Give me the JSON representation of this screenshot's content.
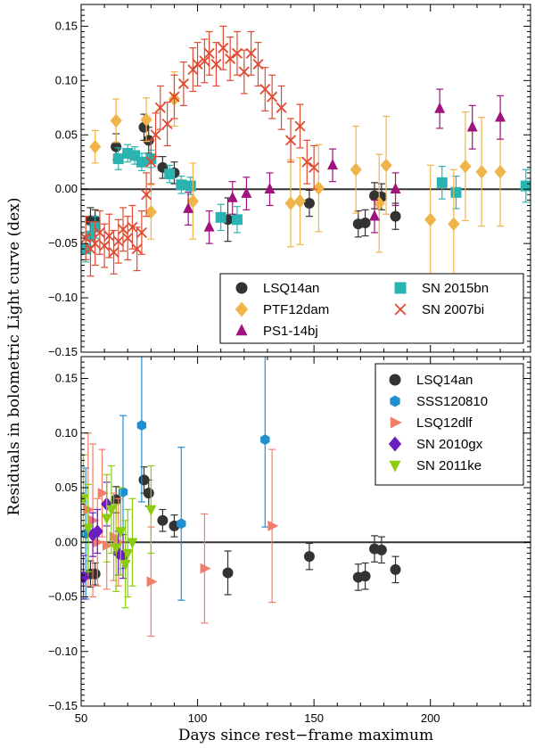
{
  "chart_data": {
    "type": "scatter",
    "xlabel": "Days since rest−frame maximum",
    "ylabel": "Residuals in bolometric Light curve (dex)",
    "xlim": [
      50,
      243
    ],
    "x_ticks": [
      "50",
      "100",
      "150",
      "200"
    ],
    "x_tick_values": [
      50,
      100,
      150,
      200
    ],
    "y_ticks": [
      "−0.15",
      "−0.10",
      "−0.05",
      "0.00",
      "0.05",
      "0.10",
      "0.15"
    ],
    "y_tick_values": [
      -0.15,
      -0.1,
      -0.05,
      0.0,
      0.05,
      0.1,
      0.15
    ],
    "ylim": [
      -0.15,
      0.17
    ],
    "zero_line": true,
    "panels": [
      {
        "legend_position": "lower-right",
        "legend_columns": 2,
        "series": [
          {
            "name": "LSQ14an",
            "marker": "circle",
            "color": "#333333",
            "points": [
              [
                54,
                -0.029,
                0.012
              ],
              [
                56,
                -0.029,
                0.01
              ],
              [
                65,
                0.039,
                0.012
              ],
              [
                77,
                0.057,
                0.012
              ],
              [
                79,
                0.045,
                0.012
              ],
              [
                85,
                0.02,
                0.01
              ],
              [
                90,
                0.015,
                0.01
              ],
              [
                113,
                -0.028,
                0.02
              ],
              [
                148,
                -0.013,
                0.012
              ],
              [
                169,
                -0.032,
                0.012
              ],
              [
                172,
                -0.031,
                0.012
              ],
              [
                176,
                -0.006,
                0.012
              ],
              [
                179,
                -0.007,
                0.012
              ],
              [
                185,
                -0.025,
                0.012
              ]
            ]
          },
          {
            "name": "SN 2015bn",
            "marker": "square",
            "color": "#2ab3b1",
            "points": [
              [
                52,
                -0.055,
                0.012
              ],
              [
                54,
                -0.043,
                0.01
              ],
              [
                56,
                -0.035,
                0.01
              ],
              [
                66,
                0.028,
                0.01
              ],
              [
                70,
                0.033,
                0.008
              ],
              [
                73,
                0.031,
                0.008
              ],
              [
                76,
                0.025,
                0.008
              ],
              [
                80,
                0.028,
                0.008
              ],
              [
                88,
                0.014,
                0.008
              ],
              [
                93,
                0.004,
                0.008
              ],
              [
                97,
                0.003,
                0.008
              ],
              [
                110,
                -0.026,
                0.012
              ],
              [
                117,
                -0.028,
                0.012
              ],
              [
                205,
                0.006,
                0.015
              ],
              [
                211,
                -0.003,
                0.015
              ],
              [
                241,
                0.003,
                0.015
              ]
            ]
          },
          {
            "name": "PTF12dam",
            "marker": "diamond",
            "color": "#f0b54a",
            "points": [
              [
                56,
                0.039,
                0.015
              ],
              [
                65,
                0.063,
                0.02
              ],
              [
                78,
                0.064,
                0.02
              ],
              [
                80,
                -0.021,
                0.025
              ],
              [
                90,
                0.083,
                0.025
              ],
              [
                98,
                -0.011,
                0.035
              ],
              [
                140,
                -0.013,
                0.04
              ],
              [
                144,
                -0.011,
                0.04
              ],
              [
                152,
                0.001,
                0.04
              ],
              [
                168,
                0.018,
                0.04
              ],
              [
                178,
                -0.013,
                0.045
              ],
              [
                181,
                0.022,
                0.045
              ],
              [
                200,
                -0.028,
                0.05
              ],
              [
                210,
                -0.032,
                0.05
              ],
              [
                215,
                0.021,
                0.05
              ],
              [
                222,
                0.016,
                0.05
              ],
              [
                230,
                0.016,
                0.05
              ]
            ]
          },
          {
            "name": "SN 2007bi",
            "marker": "x",
            "color": "#e04a30",
            "points": [
              [
                52,
                -0.045,
                0.02
              ],
              [
                54,
                -0.055,
                0.025
              ],
              [
                56,
                -0.05,
                0.02
              ],
              [
                58,
                -0.04,
                0.02
              ],
              [
                60,
                -0.052,
                0.02
              ],
              [
                62,
                -0.043,
                0.02
              ],
              [
                64,
                -0.058,
                0.02
              ],
              [
                66,
                -0.048,
                0.02
              ],
              [
                68,
                -0.037,
                0.02
              ],
              [
                70,
                -0.045,
                0.02
              ],
              [
                72,
                -0.035,
                0.02
              ],
              [
                74,
                -0.055,
                0.02
              ],
              [
                76,
                -0.04,
                0.02
              ],
              [
                78,
                -0.005,
                0.02
              ],
              [
                80,
                0.025,
                0.02
              ],
              [
                82,
                0.05,
                0.02
              ],
              [
                84,
                0.075,
                0.02
              ],
              [
                87,
                0.06,
                0.02
              ],
              [
                90,
                0.085,
                0.02
              ],
              [
                94,
                0.097,
                0.02
              ],
              [
                98,
                0.11,
                0.02
              ],
              [
                100,
                0.115,
                0.02
              ],
              [
                103,
                0.118,
                0.02
              ],
              [
                105,
                0.125,
                0.02
              ],
              [
                108,
                0.115,
                0.02
              ],
              [
                111,
                0.13,
                0.02
              ],
              [
                114,
                0.12,
                0.02
              ],
              [
                117,
                0.125,
                0.02
              ],
              [
                120,
                0.108,
                0.02
              ],
              [
                123,
                0.125,
                0.02
              ],
              [
                126,
                0.115,
                0.02
              ],
              [
                129,
                0.092,
                0.02
              ],
              [
                132,
                0.085,
                0.02
              ],
              [
                136,
                0.075,
                0.02
              ],
              [
                140,
                0.045,
                0.02
              ],
              [
                144,
                0.058,
                0.02
              ],
              [
                147,
                0.025,
                0.02
              ],
              [
                150,
                0.02,
                0.02
              ]
            ]
          },
          {
            "name": "PS1-14bj",
            "marker": "triangle-up",
            "color": "#a0137e",
            "points": [
              [
                96,
                -0.018,
                0.015
              ],
              [
                105,
                -0.035,
                0.015
              ],
              [
                115,
                -0.008,
                0.015
              ],
              [
                121,
                -0.004,
                0.015
              ],
              [
                131,
                0.0,
                0.015
              ],
              [
                158,
                0.022,
                0.015
              ],
              [
                176,
                -0.025,
                0.015
              ],
              [
                185,
                0.0,
                0.015
              ],
              [
                204,
                0.074,
                0.018
              ],
              [
                218,
                0.057,
                0.02
              ],
              [
                230,
                0.066,
                0.02
              ]
            ]
          }
        ]
      },
      {
        "legend_position": "upper-right",
        "legend_columns": 1,
        "series": [
          {
            "name": "LSQ14an",
            "marker": "circle",
            "color": "#333333",
            "points": [
              [
                54,
                -0.029,
                0.012
              ],
              [
                56,
                -0.029,
                0.01
              ],
              [
                65,
                0.039,
                0.012
              ],
              [
                77,
                0.057,
                0.012
              ],
              [
                79,
                0.045,
                0.012
              ],
              [
                85,
                0.02,
                0.01
              ],
              [
                90,
                0.015,
                0.01
              ],
              [
                113,
                -0.028,
                0.02
              ],
              [
                148,
                -0.013,
                0.012
              ],
              [
                169,
                -0.032,
                0.012
              ],
              [
                172,
                -0.031,
                0.012
              ],
              [
                176,
                -0.006,
                0.012
              ],
              [
                179,
                -0.007,
                0.012
              ],
              [
                185,
                -0.025,
                0.012
              ]
            ]
          },
          {
            "name": "SSS120810",
            "marker": "hexagon",
            "color": "#1f8fd0",
            "points": [
              [
                52,
                0.008,
                0.06
              ],
              [
                68,
                0.046,
                0.07
              ],
              [
                76,
                0.107,
                0.07
              ],
              [
                93,
                0.017,
                0.07
              ],
              [
                129,
                0.094,
                0.08
              ]
            ]
          },
          {
            "name": "LSQ12dlf",
            "marker": "triangle-right",
            "color": "#f07e6b",
            "points": [
              [
                53,
                0.03,
                0.07
              ],
              [
                55,
                0.02,
                0.07
              ],
              [
                57,
                0.0,
                0.04
              ],
              [
                59,
                0.045,
                0.04
              ],
              [
                61,
                -0.003,
                0.04
              ],
              [
                64,
                0.005,
                0.04
              ],
              [
                66,
                0.0,
                0.04
              ],
              [
                80,
                -0.036,
                0.05
              ],
              [
                103,
                -0.024,
                0.05
              ],
              [
                132,
                0.015,
                0.07
              ]
            ]
          },
          {
            "name": "SN 2010gx",
            "marker": "diamond",
            "color": "#6a1ebd",
            "points": [
              [
                51,
                -0.032,
                0.02
              ],
              [
                55,
                0.007,
                0.02
              ],
              [
                57,
                0.01,
                0.02
              ],
              [
                61,
                0.035,
                0.02
              ],
              [
                66,
                -0.01,
                0.02
              ],
              [
                68,
                -0.013,
                0.02
              ]
            ]
          },
          {
            "name": "SN 2011ke",
            "marker": "triangle-down",
            "color": "#8ccc10",
            "points": [
              [
                51,
                0.04,
                0.04
              ],
              [
                53,
                0.013,
                0.04
              ],
              [
                61,
                0.022,
                0.04
              ],
              [
                63,
                0.03,
                0.04
              ],
              [
                65,
                -0.005,
                0.04
              ],
              [
                67,
                0.01,
                0.04
              ],
              [
                69,
                -0.02,
                0.04
              ],
              [
                70,
                -0.01,
                0.04
              ],
              [
                72,
                0.0,
                0.04
              ],
              [
                80,
                0.03,
                0.04
              ]
            ]
          }
        ]
      }
    ]
  }
}
